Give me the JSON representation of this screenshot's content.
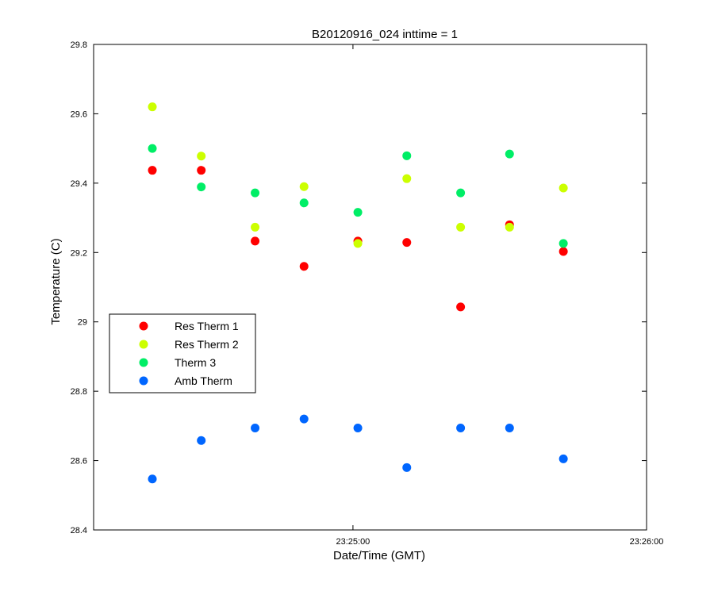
{
  "chart_data": {
    "type": "scatter",
    "title": "B20120916_024 inttime = 1",
    "xlabel": "Date/Time (GMT)",
    "ylabel": "Temperature (C)",
    "xlim": [
      "23:24:07",
      "23:26:00"
    ],
    "ylim": [
      28.4,
      29.8
    ],
    "x_ticks": [
      "23:25:00",
      "23:26:00"
    ],
    "y_ticks": [
      28.4,
      28.6,
      28.8,
      29,
      29.2,
      29.4,
      29.6,
      29.8
    ],
    "grid": false,
    "legend_position": "middle-left",
    "x": [
      "23:24:19",
      "23:24:29",
      "23:24:40",
      "23:24:50",
      "23:25:01",
      "23:25:11",
      "23:25:22",
      "23:25:32",
      "23:25:43"
    ],
    "series": [
      {
        "name": "Res Therm 1",
        "color": "#ff0000",
        "values": [
          29.437,
          29.437,
          29.233,
          29.16,
          29.233,
          29.229,
          29.043,
          29.28,
          29.203
        ]
      },
      {
        "name": "Res Therm 2",
        "color": "#ccff00",
        "values": [
          29.62,
          29.478,
          29.273,
          29.39,
          29.226,
          29.413,
          29.273,
          29.273,
          29.386
        ]
      },
      {
        "name": "Therm 3",
        "color": "#00ee66",
        "values": [
          29.5,
          29.389,
          29.372,
          29.343,
          29.316,
          29.479,
          29.372,
          29.484,
          29.226
        ]
      },
      {
        "name": "Amb Therm",
        "color": "#0066ff",
        "values": [
          28.547,
          28.658,
          28.694,
          28.72,
          28.694,
          28.58,
          28.694,
          28.694,
          28.605
        ]
      }
    ]
  }
}
